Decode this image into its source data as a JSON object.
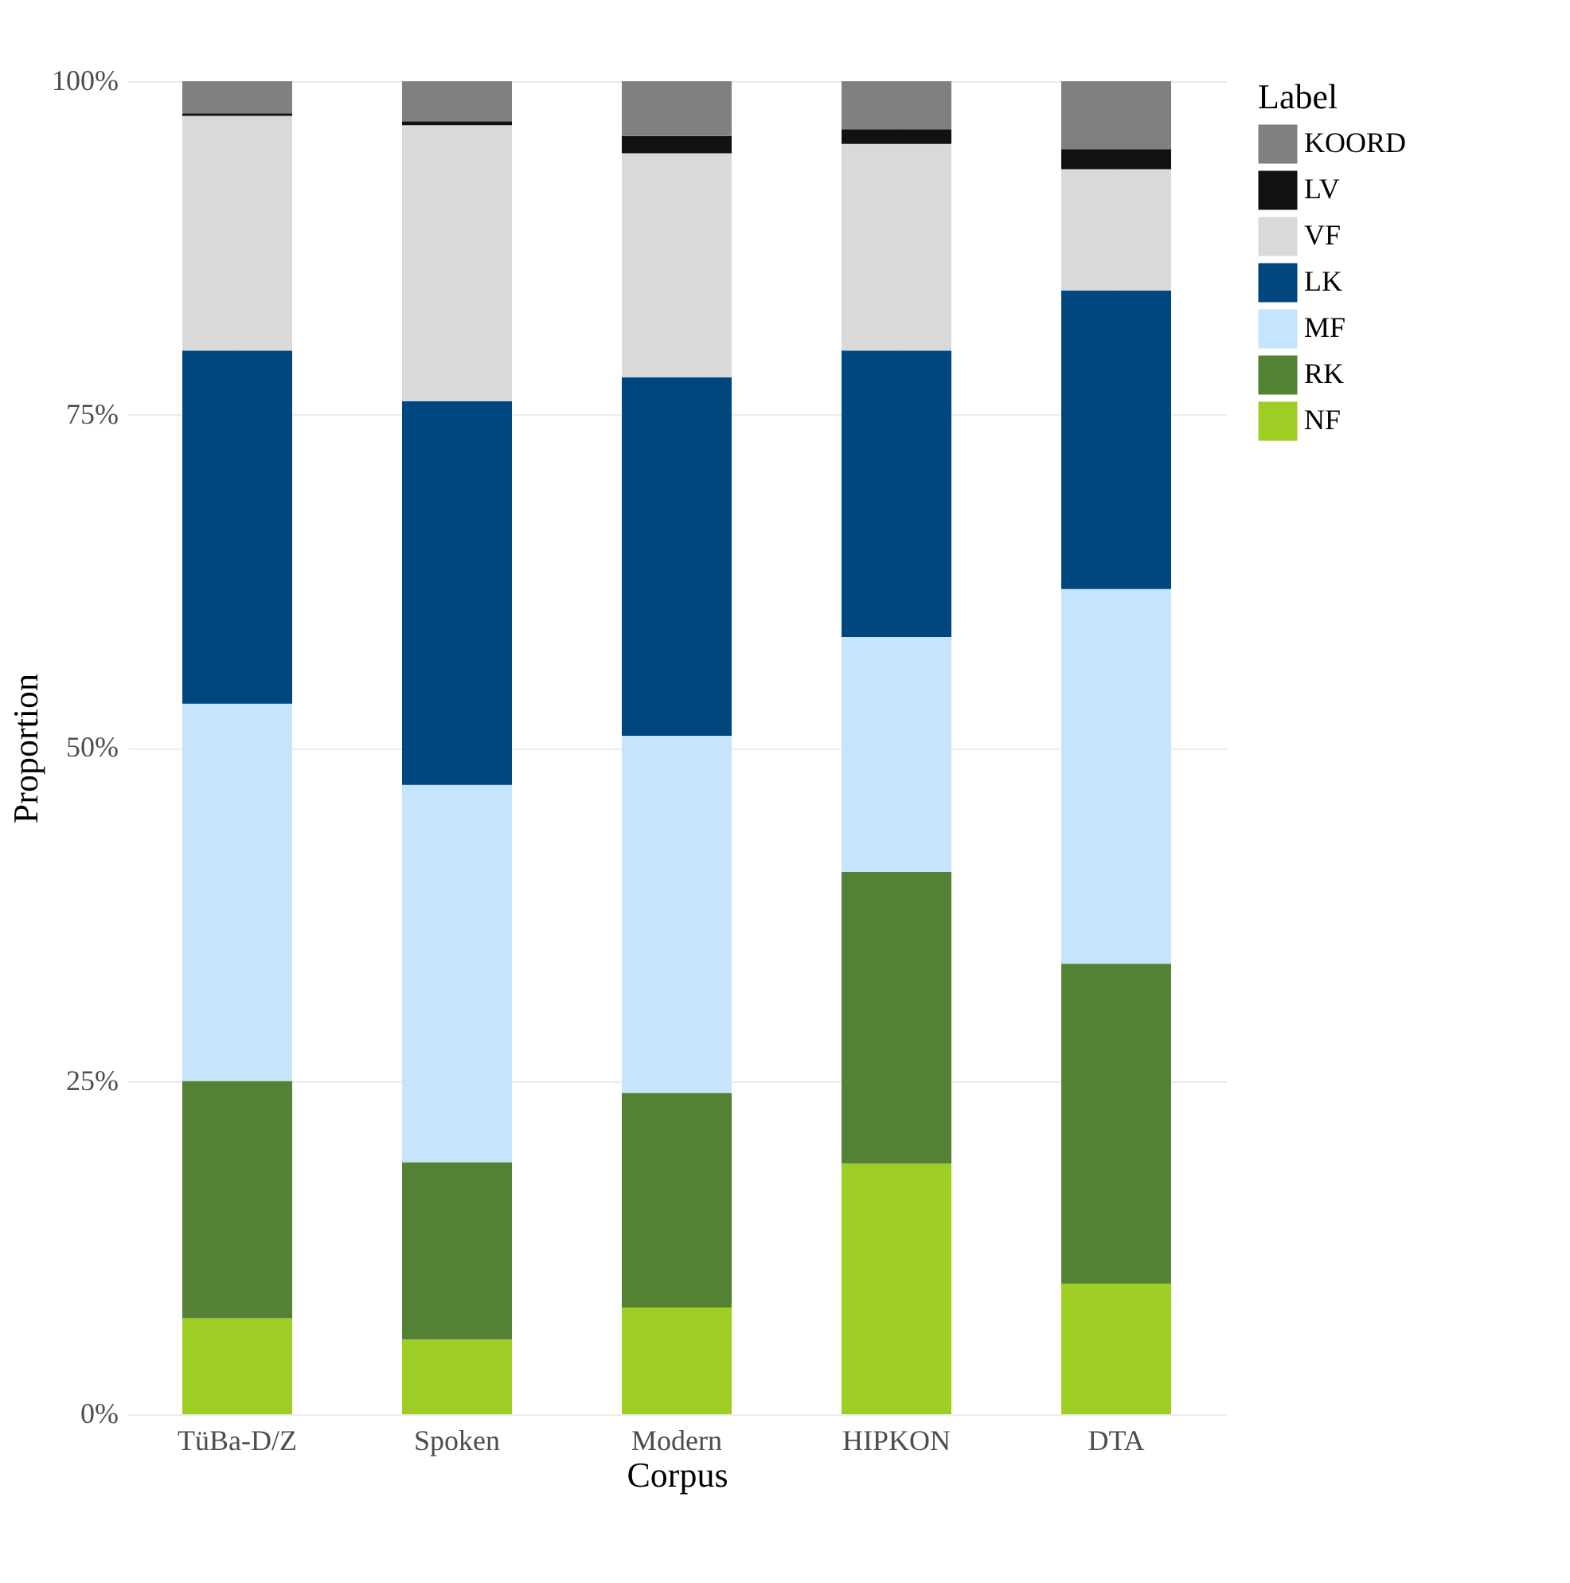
{
  "chart_data": {
    "type": "bar",
    "stacked": true,
    "xlabel": "Corpus",
    "ylabel": "Proportion",
    "legend_title": "Label",
    "legend": "right",
    "grid": true,
    "categories": [
      "TüBa-D/Z",
      "Spoken",
      "Modern",
      "HIPKON",
      "DTA"
    ],
    "ylim": [
      0,
      100
    ],
    "yticks": [
      {
        "value": 0,
        "label": "0%"
      },
      {
        "value": 25,
        "label": "25%"
      },
      {
        "value": 50,
        "label": "50%"
      },
      {
        "value": 75,
        "label": "75%"
      },
      {
        "value": 100,
        "label": "100%"
      }
    ],
    "series": [
      {
        "name": "NF",
        "color": "#9ecd24",
        "values": [
          7.2,
          5.6,
          8.0,
          18.8,
          9.8
        ]
      },
      {
        "name": "RK",
        "color": "#548235",
        "values": [
          17.8,
          13.3,
          16.1,
          21.9,
          24.0
        ]
      },
      {
        "name": "MF",
        "color": "#c6e4fc",
        "values": [
          28.3,
          28.3,
          26.8,
          17.6,
          28.1
        ]
      },
      {
        "name": "LK",
        "color": "#00467f",
        "values": [
          26.5,
          28.8,
          26.9,
          21.5,
          22.4
        ]
      },
      {
        "name": "VF",
        "color": "#d9d9d9",
        "values": [
          17.6,
          20.7,
          16.8,
          15.5,
          9.1
        ]
      },
      {
        "name": "LV",
        "color": "#111111",
        "values": [
          0.2,
          0.3,
          1.3,
          1.1,
          1.5
        ]
      },
      {
        "name": "KOORD",
        "color": "#808080",
        "values": [
          2.4,
          3.0,
          4.1,
          3.6,
          5.1
        ]
      }
    ]
  }
}
